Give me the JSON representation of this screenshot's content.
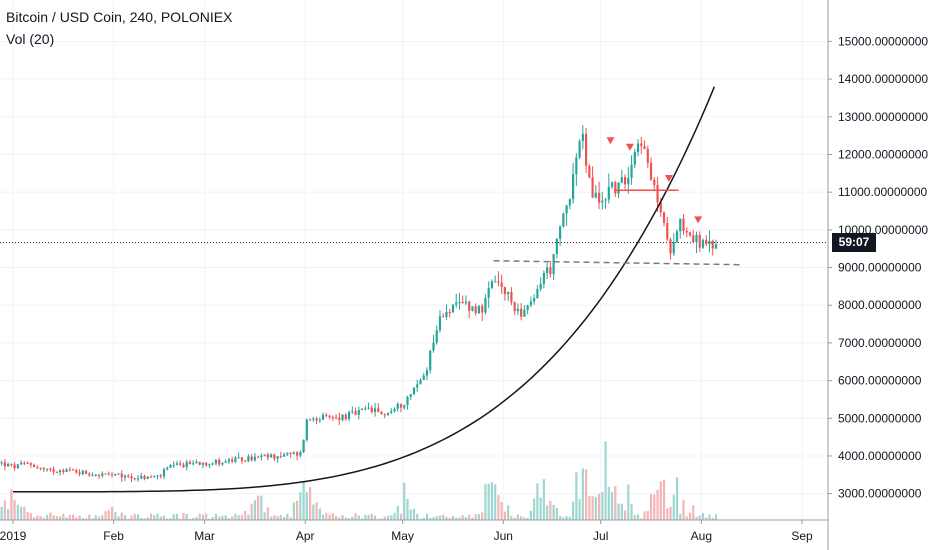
{
  "header": {
    "symbol_line": "Bitcoin / USD Coin, 240, POLONIEX",
    "indicator": "Vol (20)"
  },
  "price_badge": "59:07",
  "chart_data": {
    "type": "candlestick",
    "symbol": "Bitcoin / USD Coin",
    "interval": "240",
    "exchange": "POLONIEX",
    "y_ticks": [
      "3000.00000000",
      "4000.00000000",
      "5000.00000000",
      "6000.00000000",
      "7000.00000000",
      "8000.00000000",
      "9000.00000000",
      "10000.00000000",
      "11000.00000000",
      "12000.00000000",
      "13000.00000000",
      "14000.00000000",
      "15000.00000000"
    ],
    "x_ticks": [
      {
        "label": "2019",
        "day": 0
      },
      {
        "label": "Feb",
        "day": 31
      },
      {
        "label": "Mar",
        "day": 59
      },
      {
        "label": "Apr",
        "day": 90
      },
      {
        "label": "May",
        "day": 120
      },
      {
        "label": "Jun",
        "day": 151
      },
      {
        "label": "Jul",
        "day": 181
      },
      {
        "label": "Aug",
        "day": 212
      },
      {
        "label": "Sep",
        "day": 243
      }
    ],
    "ylim": [
      2300,
      16100
    ],
    "xlim_days": [
      -4,
      251
    ],
    "current_price": 9660,
    "colors": {
      "up": "#26a69a",
      "down": "#ef5350",
      "vol_up": "#9ed7d1",
      "vol_down": "#f4b6b5",
      "curve": "#131722",
      "support": "#787b86",
      "resistance": "#ef5350"
    },
    "close_path": [
      [
        -4,
        3820
      ],
      [
        0,
        3700
      ],
      [
        5,
        3800
      ],
      [
        10,
        3600
      ],
      [
        15,
        3650
      ],
      [
        20,
        3580
      ],
      [
        25,
        3520
      ],
      [
        30,
        3480
      ],
      [
        35,
        3450
      ],
      [
        40,
        3420
      ],
      [
        45,
        3450
      ],
      [
        48,
        3700
      ],
      [
        52,
        3750
      ],
      [
        56,
        3830
      ],
      [
        60,
        3820
      ],
      [
        65,
        3850
      ],
      [
        70,
        3900
      ],
      [
        75,
        3950
      ],
      [
        80,
        3990
      ],
      [
        85,
        4030
      ],
      [
        89,
        4070
      ],
      [
        90,
        4900
      ],
      [
        93,
        5050
      ],
      [
        97,
        4980
      ],
      [
        102,
        5050
      ],
      [
        107,
        5150
      ],
      [
        110,
        5250
      ],
      [
        113,
        5100
      ],
      [
        117,
        5200
      ],
      [
        120,
        5400
      ],
      [
        123,
        5700
      ],
      [
        127,
        6200
      ],
      [
        130,
        7300
      ],
      [
        133,
        7900
      ],
      [
        136,
        7900
      ],
      [
        139,
        8100
      ],
      [
        142,
        7900
      ],
      [
        145,
        7950
      ],
      [
        148,
        8650
      ],
      [
        151,
        8400
      ],
      [
        154,
        8000
      ],
      [
        157,
        7800
      ],
      [
        160,
        8000
      ],
      [
        163,
        8800
      ],
      [
        166,
        9000
      ],
      [
        169,
        10200
      ],
      [
        172,
        11200
      ],
      [
        175,
        12600
      ],
      [
        178,
        11000
      ],
      [
        181,
        10700
      ],
      [
        184,
        11200
      ],
      [
        187,
        11100
      ],
      [
        190,
        11700
      ],
      [
        193,
        12600
      ],
      [
        196,
        11400
      ],
      [
        199,
        10700
      ],
      [
        202,
        9400
      ],
      [
        205,
        10300
      ],
      [
        208,
        9900
      ],
      [
        211,
        9700
      ],
      [
        214,
        9500
      ],
      [
        217,
        9660
      ]
    ],
    "volume_peaks": [
      [
        0,
        0.7
      ],
      [
        30,
        0.35
      ],
      [
        75,
        0.45
      ],
      [
        90,
        0.75
      ],
      [
        120,
        0.5
      ],
      [
        148,
        1.0
      ],
      [
        163,
        0.85
      ],
      [
        176,
        1.0
      ],
      [
        181,
        1.0
      ],
      [
        187,
        0.8
      ],
      [
        199,
        0.95
      ],
      [
        205,
        0.6
      ]
    ],
    "support_level": 9100,
    "resistance_level": 11050,
    "arrow_markers": [
      [
        184,
        12350
      ],
      [
        190,
        12180
      ],
      [
        202,
        11350
      ],
      [
        211,
        10250
      ]
    ]
  }
}
